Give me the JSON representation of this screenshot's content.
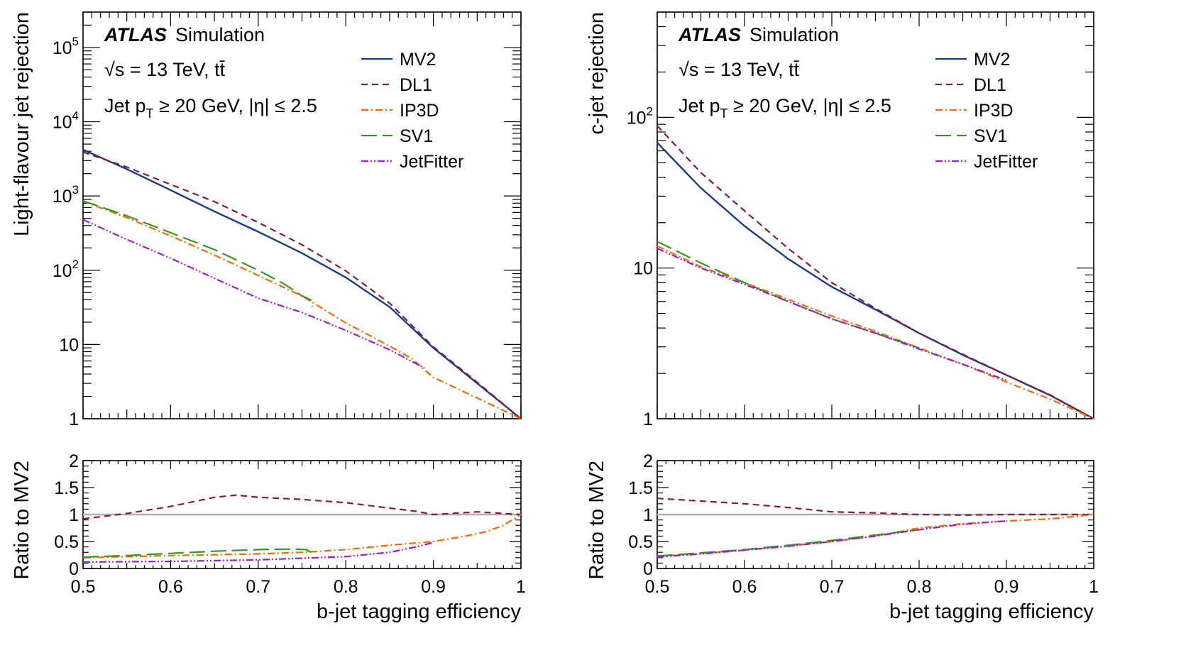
{
  "figure": {
    "x_axis_label": "b-jet tagging efficiency",
    "x_ticks": [
      "0.5",
      "0.6",
      "0.7",
      "0.8",
      "0.9",
      "1"
    ],
    "ratio_ylabel": "Ratio to MV2",
    "ratio_ticks": [
      "0",
      "0.5",
      "1",
      "1.5",
      "2"
    ],
    "atlas_label": "ATLAS",
    "atlas_suffix": "Simulation",
    "energy_label": "√s = 13 TeV, tt̄",
    "cut_label": "Jet pT ≥ 20 GeV, |η| ≤ 2.5"
  },
  "legend": {
    "entries": [
      {
        "name": "MV2",
        "color": "#1a3a8c",
        "dash": "solid"
      },
      {
        "name": "DL1",
        "color": "#8b1a3a",
        "dash": "dashed"
      },
      {
        "name": "IP3D",
        "color": "#ff6600",
        "dash": "dashdot"
      },
      {
        "name": "SV1",
        "color": "#2e9a1e",
        "dash": "longdash"
      },
      {
        "name": "JetFitter",
        "color": "#9b1fd1",
        "dash": "dashdotdot"
      }
    ],
    "placement": "top-right"
  },
  "chart_data": [
    {
      "type": "line",
      "panel": "left-main",
      "ylabel": "Light-flavour jet rejection",
      "yscale": "log",
      "xlim": [
        0.5,
        1.0
      ],
      "ylim": [
        1,
        300000
      ],
      "y_ticks": [
        "1",
        "10",
        "10^2",
        "10^3",
        "10^4",
        "10^5"
      ],
      "series": [
        {
          "name": "MV2",
          "x": [
            0.5,
            0.55,
            0.6,
            0.65,
            0.7,
            0.75,
            0.8,
            0.85,
            0.9,
            0.95,
            1.0
          ],
          "y": [
            4200,
            2300,
            1200,
            620,
            330,
            170,
            80,
            32,
            9,
            3,
            1
          ]
        },
        {
          "name": "DL1",
          "x": [
            0.5,
            0.55,
            0.6,
            0.65,
            0.7,
            0.75,
            0.8,
            0.85,
            0.9,
            0.95,
            1.0
          ],
          "y": [
            3900,
            2450,
            1430,
            840,
            440,
            220,
            98,
            36,
            9.3,
            3.1,
            1
          ]
        },
        {
          "name": "IP3D",
          "x": [
            0.5,
            0.55,
            0.6,
            0.65,
            0.7,
            0.75,
            0.8,
            0.85,
            0.875,
            0.9,
            0.95,
            1.0
          ],
          "y": [
            850,
            510,
            290,
            160,
            85,
            45,
            19.5,
            9.5,
            6.5,
            3.6,
            1.9,
            1
          ]
        },
        {
          "name": "SV1",
          "x": [
            0.5,
            0.55,
            0.6,
            0.65,
            0.7,
            0.73,
            0.75,
            0.76,
            0.762
          ],
          "y": [
            860,
            540,
            320,
            190,
            100,
            65,
            45,
            40,
            32
          ]
        },
        {
          "name": "JetFitter",
          "x": [
            0.5,
            0.55,
            0.6,
            0.65,
            0.7,
            0.75,
            0.8,
            0.85,
            0.89
          ],
          "y": [
            480,
            260,
            145,
            78,
            42,
            27,
            15.5,
            8.5,
            4.8
          ]
        }
      ]
    },
    {
      "type": "line",
      "panel": "left-ratio",
      "ylabel": "Ratio to MV2",
      "xlim": [
        0.5,
        1.0
      ],
      "ylim": [
        0,
        2
      ],
      "reference_line": 1,
      "series": [
        {
          "name": "DL1",
          "x": [
            0.5,
            0.55,
            0.6,
            0.65,
            0.675,
            0.7,
            0.75,
            0.8,
            0.85,
            0.88,
            0.9,
            0.95,
            1.0
          ],
          "y": [
            0.92,
            1.02,
            1.15,
            1.32,
            1.36,
            1.32,
            1.28,
            1.22,
            1.12,
            1.06,
            1.0,
            1.05,
            1.0
          ]
        },
        {
          "name": "IP3D",
          "x": [
            0.5,
            0.6,
            0.7,
            0.75,
            0.8,
            0.85,
            0.9,
            0.93,
            0.96,
            0.98,
            1.0
          ],
          "y": [
            0.2,
            0.24,
            0.27,
            0.3,
            0.35,
            0.43,
            0.5,
            0.58,
            0.68,
            0.8,
            1.0
          ]
        },
        {
          "name": "SV1",
          "x": [
            0.5,
            0.55,
            0.6,
            0.65,
            0.7,
            0.74,
            0.755,
            0.762
          ],
          "y": [
            0.21,
            0.24,
            0.28,
            0.32,
            0.35,
            0.36,
            0.35,
            0.28
          ]
        },
        {
          "name": "JetFitter",
          "x": [
            0.5,
            0.6,
            0.7,
            0.8,
            0.85,
            0.88,
            0.9
          ],
          "y": [
            0.12,
            0.13,
            0.16,
            0.22,
            0.3,
            0.4,
            0.48
          ]
        }
      ]
    },
    {
      "type": "line",
      "panel": "right-main",
      "ylabel": "c-jet rejection",
      "yscale": "log",
      "xlim": [
        0.5,
        1.0
      ],
      "ylim": [
        1,
        500
      ],
      "y_ticks": [
        "1",
        "10",
        "10^2"
      ],
      "series": [
        {
          "name": "MV2",
          "x": [
            0.5,
            0.55,
            0.6,
            0.65,
            0.7,
            0.75,
            0.8,
            0.85,
            0.9,
            0.95,
            1.0
          ],
          "y": [
            68,
            34,
            19,
            11.5,
            7.5,
            5.3,
            3.7,
            2.65,
            1.95,
            1.43,
            1
          ]
        },
        {
          "name": "DL1",
          "x": [
            0.5,
            0.55,
            0.6,
            0.65,
            0.7,
            0.75,
            0.8,
            0.85,
            0.9,
            0.95,
            1.0
          ],
          "y": [
            88,
            43,
            24,
            13.5,
            8.0,
            5.4,
            3.7,
            2.68,
            1.95,
            1.44,
            1
          ]
        },
        {
          "name": "IP3D",
          "x": [
            0.5,
            0.55,
            0.6,
            0.65,
            0.7,
            0.75,
            0.8,
            0.85,
            0.9,
            0.95,
            1.0
          ],
          "y": [
            14,
            10.2,
            8.0,
            6.2,
            4.8,
            3.8,
            2.95,
            2.3,
            1.75,
            1.35,
            1
          ]
        },
        {
          "name": "SV1",
          "x": [
            0.5,
            0.55,
            0.6,
            0.65,
            0.7,
            0.75,
            0.8
          ],
          "y": [
            15,
            10.8,
            8.0,
            6.0,
            4.6,
            3.7,
            2.95
          ]
        },
        {
          "name": "JetFitter",
          "x": [
            0.5,
            0.55,
            0.6,
            0.65,
            0.7,
            0.75,
            0.8,
            0.85,
            0.9
          ],
          "y": [
            13.5,
            10.0,
            7.8,
            6.0,
            4.6,
            3.7,
            2.9,
            2.3,
            1.8
          ]
        }
      ]
    },
    {
      "type": "line",
      "panel": "right-ratio",
      "ylabel": "Ratio to MV2",
      "xlim": [
        0.5,
        1.0
      ],
      "ylim": [
        0,
        2
      ],
      "reference_line": 1,
      "series": [
        {
          "name": "DL1",
          "x": [
            0.5,
            0.55,
            0.6,
            0.65,
            0.7,
            0.75,
            0.8,
            0.85,
            0.9,
            0.95,
            1.0
          ],
          "y": [
            1.3,
            1.25,
            1.2,
            1.13,
            1.05,
            1.03,
            1.0,
            0.99,
            1.0,
            1.0,
            1.0
          ]
        },
        {
          "name": "IP3D",
          "x": [
            0.5,
            0.55,
            0.6,
            0.65,
            0.7,
            0.75,
            0.8,
            0.85,
            0.9,
            0.95,
            1.0
          ],
          "y": [
            0.22,
            0.28,
            0.34,
            0.42,
            0.5,
            0.6,
            0.75,
            0.83,
            0.88,
            0.92,
            1.0
          ]
        },
        {
          "name": "SV1",
          "x": [
            0.5,
            0.55,
            0.6,
            0.65,
            0.7,
            0.75,
            0.8
          ],
          "y": [
            0.23,
            0.29,
            0.35,
            0.43,
            0.52,
            0.62,
            0.72
          ]
        },
        {
          "name": "JetFitter",
          "x": [
            0.5,
            0.55,
            0.6,
            0.65,
            0.7,
            0.75,
            0.8,
            0.85,
            0.9
          ],
          "y": [
            0.21,
            0.27,
            0.34,
            0.41,
            0.5,
            0.6,
            0.72,
            0.82,
            0.88
          ]
        }
      ]
    }
  ]
}
